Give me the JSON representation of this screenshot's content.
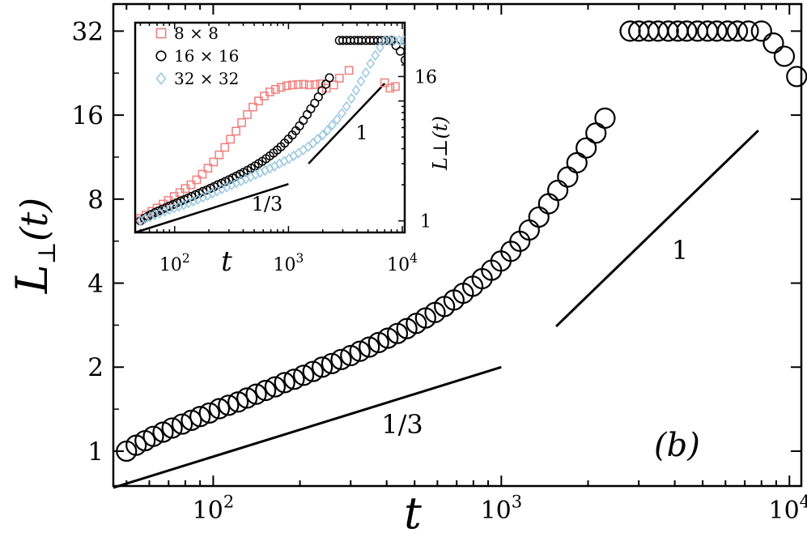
{
  "chart_data": [
    {
      "id": "main",
      "type": "scatter",
      "xscale": "log",
      "yscale": "log",
      "xlim": [
        45,
        11000
      ],
      "ylim": [
        0.75,
        40
      ],
      "xlabel_base": "L",
      "xlabel": "t",
      "ylabel_base": "L",
      "ylabel_sub": "⊥",
      "ylabel_tail": "(t)",
      "xticks": [
        {
          "value": 100,
          "base": "10",
          "exp": "2"
        },
        {
          "value": 1000,
          "base": "10",
          "exp": "3"
        },
        {
          "value": 10000,
          "base": "10",
          "exp": "4"
        }
      ],
      "yticks": [
        {
          "value": 1,
          "label": "1"
        },
        {
          "value": 2,
          "label": "2"
        },
        {
          "value": 4,
          "label": "4"
        },
        {
          "value": 8,
          "label": "8"
        },
        {
          "value": 16,
          "label": "16"
        },
        {
          "value": 32,
          "label": "32"
        }
      ],
      "panel_label": "(b)",
      "series": [
        {
          "marker": "circle",
          "color": "#000000",
          "x": [
            50,
            54,
            58,
            62,
            67,
            72,
            78,
            84,
            90,
            97,
            105,
            113,
            122,
            131,
            141,
            152,
            164,
            177,
            191,
            206,
            222,
            239,
            258,
            278,
            300,
            323,
            348,
            375,
            404,
            436,
            470,
            507,
            546,
            589,
            635,
            685,
            738,
            796,
            858,
            925,
            997,
            1080,
            1160,
            1250,
            1350,
            1460,
            1570,
            1700,
            1830,
            1970,
            2130,
            2290,
            2800,
            3000,
            3250,
            3500,
            3800,
            4100,
            4400,
            4800,
            5200,
            5600,
            6100,
            6600,
            7200,
            8000,
            8800,
            9600,
            10600
          ],
          "y": [
            1.0,
            1.05,
            1.09,
            1.13,
            1.17,
            1.21,
            1.25,
            1.29,
            1.33,
            1.37,
            1.42,
            1.46,
            1.5,
            1.55,
            1.6,
            1.65,
            1.7,
            1.76,
            1.81,
            1.87,
            1.93,
            2.0,
            2.06,
            2.13,
            2.2,
            2.28,
            2.36,
            2.45,
            2.54,
            2.64,
            2.75,
            2.87,
            3.0,
            3.14,
            3.3,
            3.48,
            3.68,
            3.9,
            4.15,
            4.45,
            4.8,
            5.2,
            5.65,
            6.2,
            6.9,
            7.7,
            8.6,
            9.6,
            10.8,
            12.2,
            13.8,
            15.6,
            32,
            32,
            32,
            32,
            32,
            32,
            32,
            32,
            32,
            32,
            32,
            32,
            32,
            32,
            29,
            26,
            22
          ]
        }
      ],
      "guide_lines": [
        {
          "label": "1/3",
          "x": [
            45,
            1000
          ],
          "y": [
            0.74,
            2.0
          ]
        },
        {
          "label": "1",
          "x": [
            1550,
            7800
          ],
          "y": [
            2.8,
            14.1
          ]
        }
      ]
    },
    {
      "id": "inset",
      "type": "scatter",
      "xscale": "log",
      "yscale": "log",
      "xlim": [
        45,
        10500
      ],
      "ylim": [
        0.8,
        45
      ],
      "xlabel": "t",
      "ylabel": "L⊥(t)",
      "xticks": [
        {
          "value": 100,
          "base": "10",
          "exp": "2"
        },
        {
          "value": 1000,
          "base": "10",
          "exp": "3"
        },
        {
          "value": 10000,
          "base": "10",
          "exp": "4"
        }
      ],
      "yticks": [
        {
          "value": 1,
          "label": "1"
        },
        {
          "value": 16,
          "label": "16"
        }
      ],
      "legend_position": "top-left",
      "series": [
        {
          "name": "8 × 8",
          "marker": "square",
          "color": "#f08080",
          "x": [
            50,
            56,
            63,
            70,
            79,
            88,
            99,
            111,
            124,
            139,
            156,
            175,
            196,
            220,
            246,
            276,
            309,
            346,
            388,
            435,
            487,
            546,
            612,
            686,
            769,
            862,
            966,
            1083,
            1214,
            1360,
            1525,
            1709,
            1916,
            2147,
            2500,
            2800,
            3400,
            7000,
            7800,
            8700
          ],
          "y": [
            1.05,
            1.12,
            1.2,
            1.28,
            1.38,
            1.48,
            1.6,
            1.72,
            1.86,
            2.0,
            2.2,
            2.45,
            2.75,
            3.1,
            3.55,
            4.1,
            4.8,
            5.6,
            6.6,
            7.7,
            8.9,
            10.0,
            11.0,
            11.9,
            12.5,
            13.0,
            13.4,
            13.6,
            13.7,
            13.8,
            13.6,
            13.7,
            13.9,
            12.8,
            13.6,
            15.5,
            18.0,
            14.2,
            12.8,
            13.2
          ]
        },
        {
          "name": "16 × 16",
          "marker": "circle",
          "color": "#000000",
          "x": [
            50,
            54,
            58,
            62,
            67,
            72,
            78,
            84,
            90,
            97,
            105,
            113,
            122,
            131,
            141,
            152,
            164,
            177,
            191,
            206,
            222,
            239,
            258,
            278,
            300,
            323,
            348,
            375,
            404,
            436,
            470,
            507,
            546,
            589,
            635,
            685,
            738,
            796,
            858,
            925,
            997,
            1080,
            1160,
            1250,
            1350,
            1460,
            1570,
            1700,
            1830,
            1970,
            2130,
            2290,
            2800,
            3000,
            3250,
            3500,
            3800,
            4100,
            4400,
            4800,
            5200,
            5600,
            6100,
            6600,
            7200,
            8000,
            8800,
            9600,
            10600
          ],
          "y": [
            1.0,
            1.05,
            1.09,
            1.13,
            1.17,
            1.21,
            1.25,
            1.29,
            1.33,
            1.37,
            1.42,
            1.46,
            1.5,
            1.55,
            1.6,
            1.65,
            1.7,
            1.76,
            1.81,
            1.87,
            1.93,
            2.0,
            2.06,
            2.13,
            2.2,
            2.28,
            2.36,
            2.45,
            2.54,
            2.64,
            2.75,
            2.87,
            3.0,
            3.14,
            3.3,
            3.48,
            3.68,
            3.9,
            4.15,
            4.45,
            4.8,
            5.2,
            5.65,
            6.2,
            6.9,
            7.7,
            8.6,
            9.6,
            10.8,
            12.2,
            13.8,
            15.6,
            32,
            32,
            32,
            32,
            32,
            32,
            32,
            32,
            32,
            32,
            32,
            32,
            32,
            32,
            29,
            26,
            22
          ]
        },
        {
          "name": "32 × 32",
          "marker": "diamond",
          "color": "#9ac8e0",
          "x": [
            50,
            55,
            61,
            67,
            74,
            82,
            90,
            99,
            109,
            120,
            132,
            146,
            160,
            177,
            195,
            214,
            236,
            260,
            287,
            316,
            348,
            383,
            422,
            465,
            512,
            564,
            622,
            685,
            755,
            832,
            916,
            1010,
            1110,
            1225,
            1350,
            1490,
            1640,
            1800,
            2000,
            2200,
            2420,
            2670,
            2940,
            3240,
            3570,
            3930,
            4330,
            4770,
            5250,
            5790,
            6380,
            7030,
            7740,
            8530,
            9400,
            10300
          ],
          "y": [
            1.0,
            1.04,
            1.08,
            1.12,
            1.16,
            1.2,
            1.24,
            1.28,
            1.32,
            1.36,
            1.41,
            1.46,
            1.51,
            1.57,
            1.63,
            1.7,
            1.77,
            1.84,
            1.91,
            1.99,
            2.07,
            2.15,
            2.24,
            2.33,
            2.43,
            2.53,
            2.63,
            2.74,
            2.86,
            3.0,
            3.15,
            3.3,
            3.48,
            3.68,
            3.9,
            4.15,
            4.45,
            4.8,
            5.2,
            5.7,
            6.3,
            7.0,
            7.9,
            9.0,
            10.5,
            12.3,
            14.6,
            17.2,
            20.5,
            24.0,
            28.0,
            32.0,
            32.0,
            32.0,
            32.0,
            32.0
          ]
        }
      ],
      "guide_lines": [
        {
          "label": "1/3",
          "x": [
            45,
            1000
          ],
          "y": [
            0.8,
            2.03
          ]
        },
        {
          "label": "1",
          "x": [
            1500,
            7000
          ],
          "y": [
            3.0,
            14.0
          ]
        }
      ]
    }
  ]
}
